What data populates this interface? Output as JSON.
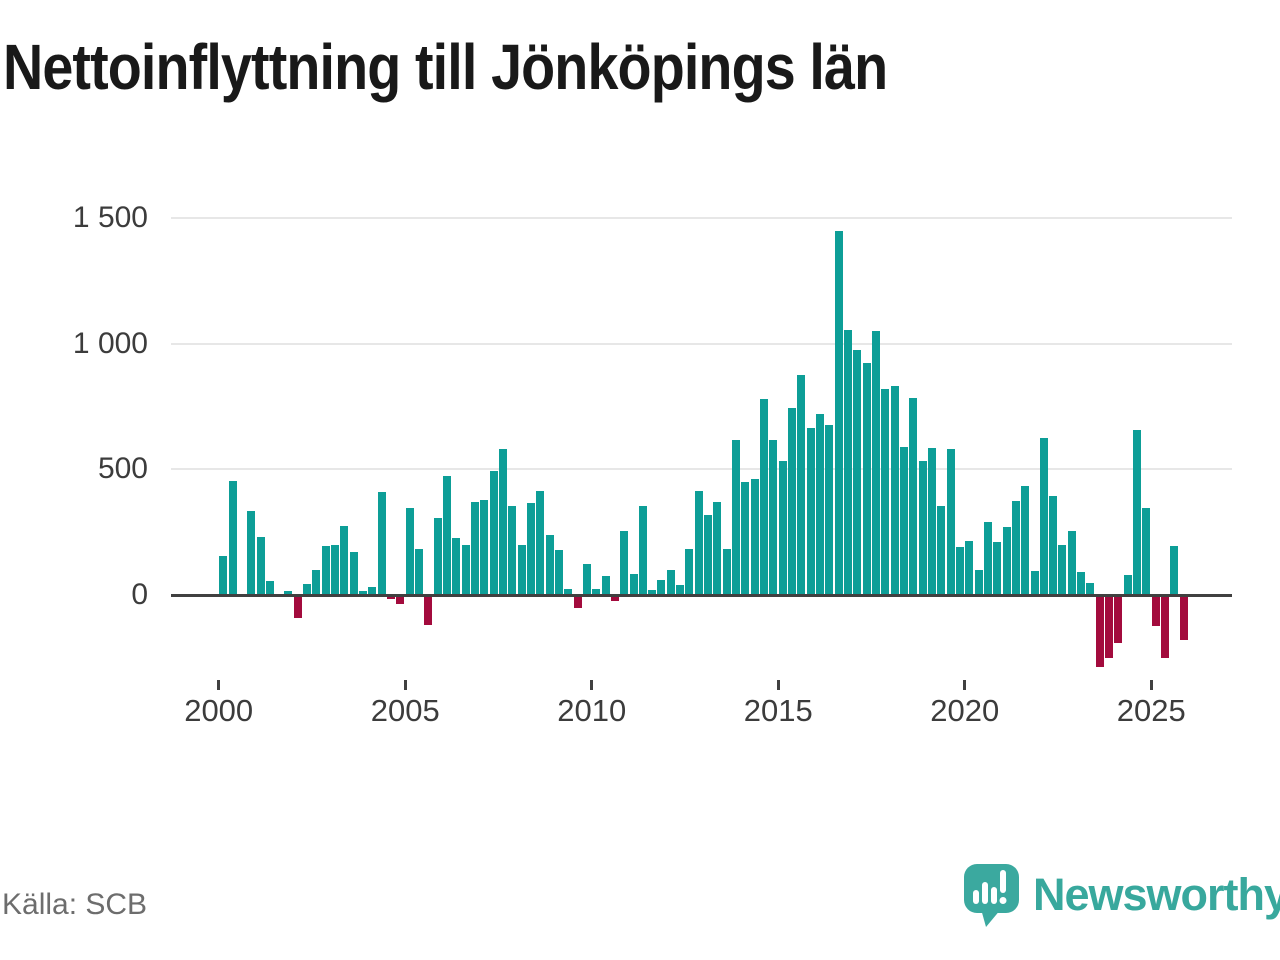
{
  "title": "Nettoinflyttning till Jönköpings län",
  "source": "Källa: SCB",
  "logo": {
    "text": "Newsworthy",
    "icon": "newsworthy-pin-barchart-icon"
  },
  "colors": {
    "positive_bar": "#0d9e97",
    "negative_bar": "#a30b3d",
    "title": "#191919",
    "axis_label": "#3c3c3c",
    "gridline": "#e7e7e7",
    "zero_axis": "#404040",
    "source_text": "#6d6d6d",
    "logo_teal": "#3ba99f"
  },
  "chart_data": {
    "type": "bar",
    "title": "Nettoinflyttning till Jönköpings län",
    "xlabel": "",
    "ylabel": "",
    "grid": true,
    "legend": false,
    "ylim": [
      -320,
      1560
    ],
    "yticks": [
      0,
      500,
      1000,
      1500
    ],
    "ytick_labels": [
      "0",
      "500",
      "1 000",
      "1 500"
    ],
    "xticks": [
      2000,
      2005,
      2010,
      2015,
      2020,
      2025
    ],
    "frequency": "quarterly",
    "series": [
      {
        "year": 2000,
        "values": [
          155,
          455,
          0,
          335
        ]
      },
      {
        "year": 2001,
        "values": [
          230,
          55,
          0,
          15
        ]
      },
      {
        "year": 2002,
        "values": [
          -90,
          45,
          100,
          195
        ]
      },
      {
        "year": 2003,
        "values": [
          200,
          275,
          170,
          15
        ]
      },
      {
        "year": 2004,
        "values": [
          30,
          410,
          -15,
          -35
        ]
      },
      {
        "year": 2005,
        "values": [
          345,
          185,
          -120,
          305
        ]
      },
      {
        "year": 2006,
        "values": [
          475,
          225,
          200,
          370
        ]
      },
      {
        "year": 2007,
        "values": [
          380,
          495,
          580,
          355
        ]
      },
      {
        "year": 2008,
        "values": [
          200,
          365,
          415,
          240
        ]
      },
      {
        "year": 2009,
        "values": [
          180,
          25,
          -50,
          125
        ]
      },
      {
        "year": 2010,
        "values": [
          25,
          75,
          -25,
          255
        ]
      },
      {
        "year": 2011,
        "values": [
          85,
          355,
          20,
          60
        ]
      },
      {
        "year": 2012,
        "values": [
          100,
          40,
          185,
          415
        ]
      },
      {
        "year": 2013,
        "values": [
          320,
          370,
          185,
          615
        ]
      },
      {
        "year": 2014,
        "values": [
          450,
          460,
          780,
          615
        ]
      },
      {
        "year": 2015,
        "values": [
          535,
          745,
          875,
          665
        ]
      },
      {
        "year": 2016,
        "values": [
          720,
          675,
          1450,
          1055
        ]
      },
      {
        "year": 2017,
        "values": [
          975,
          925,
          1050,
          820
        ]
      },
      {
        "year": 2018,
        "values": [
          830,
          590,
          785,
          535
        ]
      },
      {
        "year": 2019,
        "values": [
          585,
          355,
          580,
          190
        ]
      },
      {
        "year": 2020,
        "values": [
          215,
          100,
          290,
          210
        ]
      },
      {
        "year": 2021,
        "values": [
          270,
          375,
          435,
          95
        ]
      },
      {
        "year": 2022,
        "values": [
          625,
          395,
          200,
          255
        ]
      },
      {
        "year": 2023,
        "values": [
          90,
          47,
          -285,
          -250
        ]
      },
      {
        "year": 2024,
        "values": [
          -190,
          80,
          655,
          345
        ]
      },
      {
        "year": 2025,
        "values": [
          -125,
          -250,
          195,
          -180
        ]
      }
    ]
  }
}
